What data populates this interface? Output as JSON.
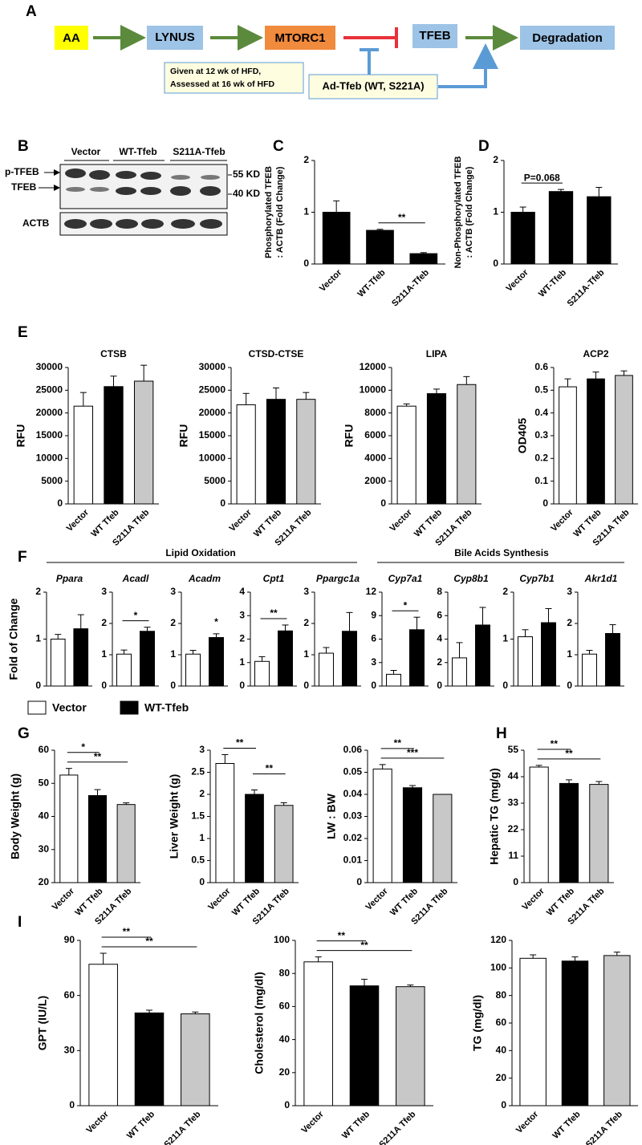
{
  "panel_labels": [
    "A",
    "B",
    "C",
    "D",
    "E",
    "F",
    "G",
    "H",
    "I"
  ],
  "panel_a": {
    "nodes": [
      "AA",
      "LYNUS",
      "MTORC1",
      "TFEB",
      "Degradation"
    ],
    "note": [
      "Given at 12 wk of HFD,",
      "Assessed  at 16 wk of HFD"
    ],
    "treatment": "Ad-Tfeb (WT, S221A)"
  },
  "panel_b": {
    "lanes": [
      "Vector",
      "WT-Tfeb",
      "S211A-Tfeb"
    ],
    "bands": [
      "p-TFEB",
      "TFEB"
    ],
    "markers": [
      "55 KD",
      "40 KD"
    ],
    "loading": "ACTB"
  },
  "panel_f": {
    "groups": [
      "Lipid Oxidation",
      "Bile Acids Synthesis"
    ],
    "legend": [
      {
        "name": "Vector",
        "color": "#ffffff"
      },
      {
        "name": "WT-Tfeb",
        "color": "#000000"
      }
    ]
  },
  "chart_data": [
    {
      "type": "bar",
      "ylabel": [
        "Phosphorylated TFEB",
        ": ACTB (Fold Change)"
      ],
      "categories": [
        "Vector",
        "WT-Tfeb",
        "S211A-Tfeb"
      ],
      "values": [
        1.0,
        0.65,
        0.2
      ],
      "errors": [
        0.22,
        0.02,
        0.02
      ],
      "colors": [
        "#000000",
        "#000000",
        "#000000"
      ],
      "ylim": [
        0,
        2
      ],
      "yticks": [
        0,
        1,
        2
      ],
      "annotations": [
        {
          "text": "**",
          "bars": [
            1,
            2
          ]
        }
      ]
    },
    {
      "type": "bar",
      "ylabel": [
        "Non-Phosphorylated TFEB",
        ": ACTB (Fold Change)"
      ],
      "categories": [
        "Vector",
        "WT-Tfeb",
        "S211A-Tfeb"
      ],
      "values": [
        1.0,
        1.4,
        1.3
      ],
      "errors": [
        0.1,
        0.04,
        0.18
      ],
      "colors": [
        "#000000",
        "#000000",
        "#000000"
      ],
      "ylim": [
        0,
        2
      ],
      "yticks": [
        0,
        1,
        2
      ],
      "annotations": [
        {
          "text": "P=0.068",
          "bars": [
            0,
            1
          ]
        }
      ]
    },
    {
      "type": "bar",
      "title": "CTSB",
      "ylabel": "RFU",
      "categories": [
        "Vector",
        "WT Tfeb",
        "S211A Tfeb"
      ],
      "values": [
        21500,
        25800,
        27000
      ],
      "errors": [
        3000,
        2300,
        3500
      ],
      "colors": [
        "#ffffff",
        "#000000",
        "#c8c8c8"
      ],
      "ylim": [
        0,
        30000
      ],
      "yticks": [
        0,
        5000,
        10000,
        15000,
        20000,
        25000,
        30000
      ]
    },
    {
      "type": "bar",
      "title": "CTSD-CTSE",
      "ylabel": "RFU",
      "categories": [
        "Vector",
        "WT Tfeb",
        "S211A Tfeb"
      ],
      "values": [
        21800,
        23000,
        23000
      ],
      "errors": [
        2500,
        2500,
        1500
      ],
      "colors": [
        "#ffffff",
        "#000000",
        "#c8c8c8"
      ],
      "ylim": [
        0,
        30000
      ],
      "yticks": [
        0,
        5000,
        10000,
        15000,
        20000,
        25000,
        30000
      ]
    },
    {
      "type": "bar",
      "title": "LIPA",
      "ylabel": "RFU",
      "categories": [
        "Vector",
        "WT Tfeb",
        "S211A Tfeb"
      ],
      "values": [
        8600,
        9700,
        10500
      ],
      "errors": [
        200,
        400,
        700
      ],
      "colors": [
        "#ffffff",
        "#000000",
        "#c8c8c8"
      ],
      "ylim": [
        0,
        12000
      ],
      "yticks": [
        0,
        2000,
        4000,
        6000,
        8000,
        10000,
        12000
      ]
    },
    {
      "type": "bar",
      "title": "ACP2",
      "ylabel": "OD405",
      "categories": [
        "Vector",
        "WT Tfeb",
        "S211A Tfeb"
      ],
      "values": [
        0.515,
        0.55,
        0.565
      ],
      "errors": [
        0.035,
        0.03,
        0.02
      ],
      "colors": [
        "#ffffff",
        "#000000",
        "#c8c8c8"
      ],
      "ylim": [
        0,
        0.6
      ],
      "yticks": [
        0,
        0.1,
        0.2,
        0.3,
        0.4,
        0.5,
        0.6
      ]
    },
    {
      "type": "bar",
      "title": "Ppara",
      "ylabel": "Fold of Change",
      "values": [
        1.0,
        1.22
      ],
      "errors": [
        0.1,
        0.3
      ],
      "colors": [
        "#ffffff",
        "#000000"
      ],
      "ylim": [
        0,
        2
      ],
      "yticks": [
        0,
        1,
        2
      ]
    },
    {
      "type": "bar",
      "title": "Acadl",
      "values": [
        1.02,
        1.75
      ],
      "errors": [
        0.13,
        0.13
      ],
      "colors": [
        "#ffffff",
        "#000000"
      ],
      "ylim": [
        0,
        3
      ],
      "yticks": [
        0,
        1,
        2,
        3
      ],
      "annotations": [
        {
          "text": "*",
          "bars": [
            0,
            1
          ]
        }
      ]
    },
    {
      "type": "bar",
      "title": "Acadm",
      "values": [
        1.02,
        1.55
      ],
      "errors": [
        0.12,
        0.12
      ],
      "colors": [
        "#ffffff",
        "#000000"
      ],
      "ylim": [
        0,
        3
      ],
      "yticks": [
        0,
        1,
        2,
        3
      ],
      "annotations": [
        {
          "text": "*",
          "bars": [
            1,
            1
          ]
        }
      ]
    },
    {
      "type": "bar",
      "title": "Cpt1",
      "values": [
        1.05,
        2.35
      ],
      "errors": [
        0.2,
        0.25
      ],
      "colors": [
        "#ffffff",
        "#000000"
      ],
      "ylim": [
        0,
        4
      ],
      "yticks": [
        0,
        1,
        2,
        3,
        4
      ],
      "annotations": [
        {
          "text": "**",
          "bars": [
            0,
            1
          ]
        }
      ]
    },
    {
      "type": "bar",
      "title": "Ppargc1a",
      "values": [
        1.05,
        1.75
      ],
      "errors": [
        0.18,
        0.6
      ],
      "colors": [
        "#ffffff",
        "#000000"
      ],
      "ylim": [
        0,
        3
      ],
      "yticks": [
        0,
        1,
        2,
        3
      ]
    },
    {
      "type": "bar",
      "title": "Cyp7a1",
      "values": [
        1.5,
        7.2
      ],
      "errors": [
        0.5,
        1.6
      ],
      "colors": [
        "#ffffff",
        "#000000"
      ],
      "ylim": [
        0,
        12
      ],
      "yticks": [
        0,
        3,
        6,
        9,
        12
      ],
      "annotations": [
        {
          "text": "*",
          "bars": [
            0,
            1
          ]
        }
      ]
    },
    {
      "type": "bar",
      "title": "Cyp8b1",
      "values": [
        2.4,
        5.2
      ],
      "errors": [
        1.3,
        1.5
      ],
      "colors": [
        "#ffffff",
        "#000000"
      ],
      "ylim": [
        0,
        8
      ],
      "yticks": [
        0,
        2,
        4,
        6,
        8
      ]
    },
    {
      "type": "bar",
      "title": "Cyp7b1",
      "values": [
        1.05,
        1.35
      ],
      "errors": [
        0.15,
        0.3
      ],
      "colors": [
        "#ffffff",
        "#000000"
      ],
      "ylim": [
        0,
        2
      ],
      "yticks": [
        0,
        1,
        2
      ]
    },
    {
      "type": "bar",
      "title": "Akr1d1",
      "values": [
        1.02,
        1.68
      ],
      "errors": [
        0.12,
        0.28
      ],
      "colors": [
        "#ffffff",
        "#000000"
      ],
      "ylim": [
        0,
        3
      ],
      "yticks": [
        0,
        1,
        2,
        3
      ]
    },
    {
      "type": "bar",
      "ylabel": "Body Weight (g)",
      "categories": [
        "Vector",
        "WT Tfeb",
        "S211A Tfeb"
      ],
      "values": [
        52.5,
        46.3,
        43.6
      ],
      "errors": [
        2,
        1.8,
        0.5
      ],
      "colors": [
        "#ffffff",
        "#000000",
        "#c8c8c8"
      ],
      "ylim": [
        20,
        60
      ],
      "yticks": [
        20,
        30,
        40,
        50,
        60
      ],
      "annotations": [
        {
          "text": "**",
          "bars": [
            0,
            2
          ]
        },
        {
          "text": "*",
          "bars": [
            0,
            1
          ]
        }
      ]
    },
    {
      "type": "bar",
      "ylabel": "Liver Weight (g)",
      "categories": [
        "Vector",
        "WT Tfeb",
        "S211A Tfeb"
      ],
      "values": [
        2.7,
        2.0,
        1.75
      ],
      "errors": [
        0.2,
        0.1,
        0.06
      ],
      "colors": [
        "#ffffff",
        "#000000",
        "#c8c8c8"
      ],
      "ylim": [
        0,
        3
      ],
      "yticks": [
        0,
        0.5,
        1,
        1.5,
        2,
        2.5,
        3
      ],
      "annotations": [
        {
          "text": "**",
          "bars": [
            0,
            1
          ]
        },
        {
          "text": "**",
          "bars": [
            1,
            2
          ]
        }
      ]
    },
    {
      "type": "bar",
      "ylabel": "LW : BW",
      "categories": [
        "Vector",
        "WT Tfeb",
        "S211A Tfeb"
      ],
      "values": [
        0.0515,
        0.043,
        0.04
      ],
      "errors": [
        0.002,
        0.001,
        0
      ],
      "colors": [
        "#ffffff",
        "#000000",
        "#c8c8c8"
      ],
      "ylim": [
        0,
        0.06
      ],
      "yticks": [
        0,
        0.01,
        0.02,
        0.03,
        0.04,
        0.05,
        0.06
      ],
      "annotations": [
        {
          "text": "***",
          "bars": [
            0,
            2
          ]
        },
        {
          "text": "**",
          "bars": [
            0,
            1
          ]
        }
      ]
    },
    {
      "type": "bar",
      "ylabel": "Hepatic TG (mg/g)",
      "categories": [
        "Vector",
        "WT Tfeb",
        "S211A Tfeb"
      ],
      "values": [
        48,
        41.2,
        40.8
      ],
      "errors": [
        0.7,
        1.5,
        1.2
      ],
      "colors": [
        "#ffffff",
        "#000000",
        "#c8c8c8"
      ],
      "ylim": [
        0,
        55
      ],
      "yticks": [
        0,
        11,
        22,
        33,
        44,
        55
      ],
      "annotations": [
        {
          "text": "**",
          "bars": [
            0,
            2
          ]
        },
        {
          "text": "**",
          "bars": [
            0,
            1
          ]
        }
      ]
    },
    {
      "type": "bar",
      "ylabel": "GPT (IU/L)",
      "categories": [
        "Vector",
        "WT Tfeb",
        "S211A Tfeb"
      ],
      "values": [
        77,
        50.5,
        50
      ],
      "errors": [
        6,
        1.5,
        1
      ],
      "colors": [
        "#ffffff",
        "#000000",
        "#c8c8c8"
      ],
      "ylim": [
        0,
        90
      ],
      "yticks": [
        0,
        30,
        60,
        90
      ],
      "annotations": [
        {
          "text": "**",
          "bars": [
            0,
            2
          ]
        },
        {
          "text": "**",
          "bars": [
            0,
            1
          ]
        }
      ]
    },
    {
      "type": "bar",
      "ylabel": "Cholesterol (mg/dl)",
      "categories": [
        "Vector",
        "WT Tfeb",
        "S211A Tfeb"
      ],
      "values": [
        87,
        72.5,
        72
      ],
      "errors": [
        3,
        4,
        1
      ],
      "colors": [
        "#ffffff",
        "#000000",
        "#c8c8c8"
      ],
      "ylim": [
        0,
        100
      ],
      "yticks": [
        0,
        20,
        40,
        60,
        80,
        100
      ],
      "annotations": [
        {
          "text": "**",
          "bars": [
            0,
            2
          ]
        },
        {
          "text": "**",
          "bars": [
            0,
            1
          ]
        }
      ]
    },
    {
      "type": "bar",
      "ylabel": "TG (mg/dl)",
      "categories": [
        "Vector",
        "WT Tfeb",
        "S211A Tfeb"
      ],
      "values": [
        107,
        105,
        109
      ],
      "errors": [
        2.5,
        3,
        2.5
      ],
      "colors": [
        "#ffffff",
        "#000000",
        "#c8c8c8"
      ],
      "ylim": [
        0,
        120
      ],
      "yticks": [
        0,
        20,
        40,
        60,
        80,
        100,
        120
      ]
    }
  ]
}
